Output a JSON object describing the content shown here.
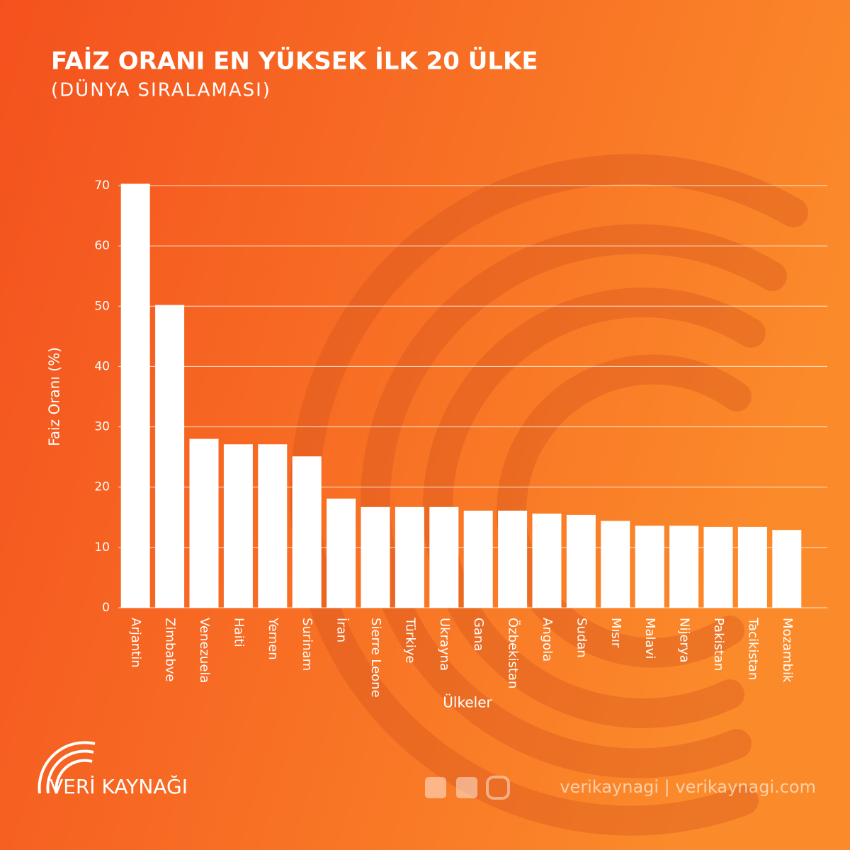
{
  "chart_data": {
    "type": "bar",
    "title": "FAİZ ORANI EN YÜKSEK İLK 20 ÜLKE",
    "subtitle": "(DÜNYA SIRALAMASI)",
    "y_label": "Faiz Oranı (%)",
    "x_label": "Ülkeler",
    "categories": [
      "Arjantin",
      "Zimbabve",
      "Venezuela",
      "Haiti",
      "Yemen",
      "Surinam",
      "İran",
      "Sierre Leone",
      "Türkiye",
      "Ukrayna",
      "Gana",
      "Özbekistan",
      "Angola",
      "Sudan",
      "Mısır",
      "Malavi",
      "Nijerya",
      "Pakistan",
      "Tacikistan",
      "Mozambik"
    ],
    "values": [
      70.3,
      50.2,
      28,
      27.1,
      27.1,
      25.1,
      18.1,
      16.7,
      16.7,
      16.7,
      16.1,
      16.1,
      15.6,
      15.4,
      14.4,
      13.6,
      13.6,
      13.4,
      13.4,
      12.9
    ],
    "color": "#ffffff",
    "ylim": [
      0,
      70
    ],
    "yticks": [
      0,
      10,
      20,
      30,
      40,
      50,
      60,
      70
    ],
    "grid": true
  },
  "footer": {
    "brand": "VERİ KAYNAĞI",
    "social": "verikaynagi | verikaynagi.com"
  }
}
